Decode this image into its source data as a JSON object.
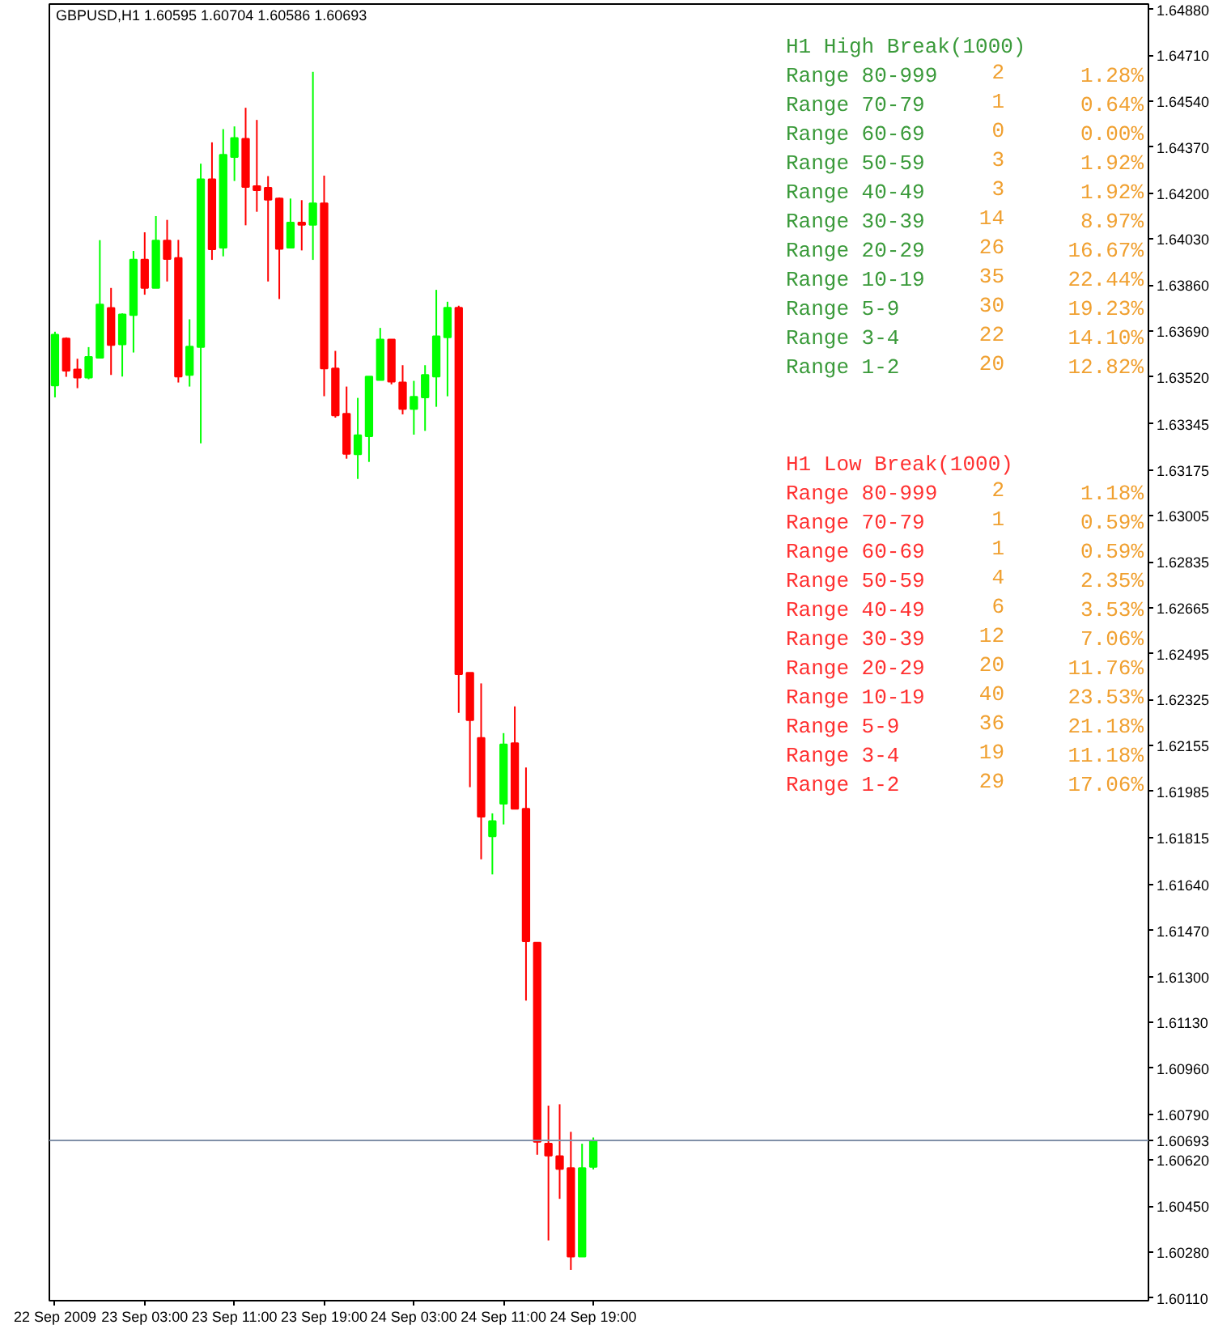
{
  "chart_data": {
    "type": "candlestick",
    "title": "GBPUSD,H1 1.60595 1.60704 1.60586 1.60693",
    "x": [
      "2009-09-22T19:00",
      "2009-09-22T20:00",
      "2009-09-22T21:00",
      "2009-09-22T22:00",
      "2009-09-22T23:00",
      "2009-09-23T00:00",
      "2009-09-23T01:00",
      "2009-09-23T02:00",
      "2009-09-23T03:00",
      "2009-09-23T04:00",
      "2009-09-23T05:00",
      "2009-09-23T06:00",
      "2009-09-23T07:00",
      "2009-09-23T08:00",
      "2009-09-23T09:00",
      "2009-09-23T10:00",
      "2009-09-23T11:00",
      "2009-09-23T12:00",
      "2009-09-23T13:00",
      "2009-09-23T14:00",
      "2009-09-23T15:00",
      "2009-09-23T16:00",
      "2009-09-23T17:00",
      "2009-09-23T18:00",
      "2009-09-23T19:00",
      "2009-09-23T20:00",
      "2009-09-23T21:00",
      "2009-09-23T22:00",
      "2009-09-23T23:00",
      "2009-09-24T00:00",
      "2009-09-24T01:00",
      "2009-09-24T02:00",
      "2009-09-24T03:00",
      "2009-09-24T04:00",
      "2009-09-24T05:00",
      "2009-09-24T06:00",
      "2009-09-24T07:00",
      "2009-09-24T08:00",
      "2009-09-24T09:00",
      "2009-09-24T10:00",
      "2009-09-24T11:00",
      "2009-09-24T12:00",
      "2009-09-24T13:00",
      "2009-09-24T14:00",
      "2009-09-24T15:00",
      "2009-09-24T16:00",
      "2009-09-24T17:00",
      "2009-09-24T18:00",
      "2009-09-24T19:00"
    ],
    "ohlc": [
      [
        1.63488,
        1.63687,
        1.63444,
        1.63676
      ],
      [
        1.63662,
        1.63666,
        1.6352,
        1.63543
      ],
      [
        1.63547,
        1.63587,
        1.63478,
        1.63517
      ],
      [
        1.63517,
        1.6363,
        1.63511,
        1.63594
      ],
      [
        1.63591,
        1.64026,
        1.63591,
        1.63788
      ],
      [
        1.63775,
        1.63849,
        1.63527,
        1.63638
      ],
      [
        1.6364,
        1.63755,
        1.63521,
        1.63751
      ],
      [
        1.63749,
        1.63986,
        1.6361,
        1.63954
      ],
      [
        1.63954,
        1.64055,
        1.63824,
        1.63849
      ],
      [
        1.63849,
        1.64115,
        1.63849,
        1.64024
      ],
      [
        1.64024,
        1.64101,
        1.63873,
        1.63956
      ],
      [
        1.6396,
        1.64027,
        1.63499,
        1.63521
      ],
      [
        1.63527,
        1.63733,
        1.63484,
        1.63632
      ],
      [
        1.6363,
        1.64309,
        1.63274,
        1.64251
      ],
      [
        1.64251,
        1.64388,
        1.63953,
        1.63992
      ],
      [
        1.63998,
        1.64437,
        1.63966,
        1.64342
      ],
      [
        1.64334,
        1.64447,
        1.64245,
        1.64404
      ],
      [
        1.64401,
        1.64516,
        1.64081,
        1.64223
      ],
      [
        1.64226,
        1.64471,
        1.64131,
        1.64211
      ],
      [
        1.6422,
        1.64263,
        1.63873,
        1.64176
      ],
      [
        1.6418,
        1.64184,
        1.63808,
        1.63994
      ],
      [
        1.63998,
        1.6418,
        1.63998,
        1.64091
      ],
      [
        1.64091,
        1.64174,
        1.63988,
        1.64083
      ],
      [
        1.64083,
        1.64649,
        1.63953,
        1.64162
      ],
      [
        1.64162,
        1.64265,
        1.63448,
        1.63551
      ],
      [
        1.63551,
        1.63616,
        1.63369,
        1.63377
      ],
      [
        1.63383,
        1.63484,
        1.63217,
        1.63235
      ],
      [
        1.63233,
        1.63442,
        1.63142,
        1.63304
      ],
      [
        1.633,
        1.63521,
        1.63205,
        1.63521
      ],
      [
        1.63508,
        1.63701,
        1.63508,
        1.63658
      ],
      [
        1.63658,
        1.63658,
        1.63492,
        1.63502
      ],
      [
        1.63499,
        1.63563,
        1.63381,
        1.63401
      ],
      [
        1.63401,
        1.63505,
        1.63306,
        1.63446
      ],
      [
        1.63444,
        1.63563,
        1.6332,
        1.63527
      ],
      [
        1.63521,
        1.63842,
        1.63409,
        1.6367
      ],
      [
        1.63666,
        1.63798,
        1.63448,
        1.63776
      ],
      [
        1.63776,
        1.63783,
        1.62276,
        1.62419
      ],
      [
        1.62424,
        1.62424,
        1.62001,
        1.62249
      ],
      [
        1.62183,
        1.62385,
        1.61734,
        1.61892
      ],
      [
        1.61819,
        1.61904,
        1.61678,
        1.61875
      ],
      [
        1.6194,
        1.62201,
        1.61863,
        1.62159
      ],
      [
        1.62164,
        1.623,
        1.61921,
        1.61921
      ],
      [
        1.61921,
        1.62074,
        1.61211,
        1.6143
      ],
      [
        1.61425,
        1.61425,
        1.6064,
        1.60688
      ],
      [
        1.60681,
        1.60822,
        1.60323,
        1.60637
      ],
      [
        1.60635,
        1.60827,
        1.60477,
        1.60588
      ],
      [
        1.60591,
        1.60725,
        1.60214,
        1.60263
      ],
      [
        1.60263,
        1.60681,
        1.60263,
        1.60591
      ],
      [
        1.60595,
        1.60704,
        1.60586,
        1.60693
      ]
    ],
    "colors": [
      "#00ff00",
      "#ff0000",
      "#ff0000",
      "#00ff00",
      "#00ff00",
      "#ff0000",
      "#00ff00",
      "#00ff00",
      "#ff0000",
      "#00ff00",
      "#ff0000",
      "#ff0000",
      "#00ff00",
      "#00ff00",
      "#ff0000",
      "#00ff00",
      "#00ff00",
      "#ff0000",
      "#ff0000",
      "#ff0000",
      "#ff0000",
      "#00ff00",
      "#ff0000",
      "#00ff00",
      "#ff0000",
      "#ff0000",
      "#ff0000",
      "#00ff00",
      "#00ff00",
      "#00ff00",
      "#ff0000",
      "#ff0000",
      "#00ff00",
      "#00ff00",
      "#00ff00",
      "#00ff00",
      "#ff0000",
      "#ff0000",
      "#ff0000",
      "#00ff00",
      "#00ff00",
      "#ff0000",
      "#ff0000",
      "#ff0000",
      "#ff0000",
      "#ff0000",
      "#ff0000",
      "#00ff00",
      "#00ff00"
    ],
    "xlim": [
      "2009-09-22T18:30",
      "2009-09-26T20:30"
    ],
    "xticks": [
      {
        "value": "2009-09-22T19:00",
        "label": "22 Sep 2009"
      },
      {
        "value": "2009-09-23T03:00",
        "label": "23 Sep 03:00"
      },
      {
        "value": "2009-09-23T11:00",
        "label": "23 Sep 11:00"
      },
      {
        "value": "2009-09-23T19:00",
        "label": "23 Sep 19:00"
      },
      {
        "value": "2009-09-24T03:00",
        "label": "24 Sep 03:00"
      },
      {
        "value": "2009-09-24T11:00",
        "label": "24 Sep 11:00"
      },
      {
        "value": "2009-09-24T19:00",
        "label": "24 Sep 19:00"
      }
    ],
    "ylim": [
      1.601,
      1.649
    ],
    "yticks": [
      {
        "value": 1.6488,
        "label": "1.64880"
      },
      {
        "value": 1.6471,
        "label": "1.64710"
      },
      {
        "value": 1.6454,
        "label": "1.64540"
      },
      {
        "value": 1.6437,
        "label": "1.64370"
      },
      {
        "value": 1.642,
        "label": "1.64200"
      },
      {
        "value": 1.6403,
        "label": "1.64030"
      },
      {
        "value": 1.6386,
        "label": "1.63860"
      },
      {
        "value": 1.6369,
        "label": "1.63690"
      },
      {
        "value": 1.6352,
        "label": "1.63520"
      },
      {
        "value": 1.63345,
        "label": "1.63345"
      },
      {
        "value": 1.63175,
        "label": "1.63175"
      },
      {
        "value": 1.63005,
        "label": "1.63005"
      },
      {
        "value": 1.62835,
        "label": "1.62835"
      },
      {
        "value": 1.62665,
        "label": "1.62665"
      },
      {
        "value": 1.62495,
        "label": "1.62495"
      },
      {
        "value": 1.62325,
        "label": "1.62325"
      },
      {
        "value": 1.62155,
        "label": "1.62155"
      },
      {
        "value": 1.61985,
        "label": "1.61985"
      },
      {
        "value": 1.61815,
        "label": "1.61815"
      },
      {
        "value": 1.6164,
        "label": "1.61640"
      },
      {
        "value": 1.6147,
        "label": "1.61470"
      },
      {
        "value": 1.613,
        "label": "1.61300"
      },
      {
        "value": 1.6113,
        "label": "1.61130"
      },
      {
        "value": 1.6096,
        "label": "1.60960"
      },
      {
        "value": 1.6079,
        "label": "1.60790"
      },
      {
        "value": 1.6062,
        "label": "1.60620"
      },
      {
        "value": 1.6045,
        "label": "1.60450"
      },
      {
        "value": 1.6028,
        "label": "1.60280"
      },
      {
        "value": 1.6011,
        "label": "1.60110"
      }
    ],
    "ref_lines": [
      {
        "axis": "y",
        "value": 1.60693,
        "label": "1.60693",
        "color": "#8090a8"
      }
    ],
    "annotations": [
      "H1 High Break(1000)",
      "Range 80-999",
      "2",
      "1.28%",
      "Range 70-79",
      "1",
      "0.64%",
      "Range 60-69",
      "0",
      "0.00%",
      "Range 50-59",
      "3",
      "1.92%",
      "Range 40-49",
      "3",
      "1.92%",
      "Range 30-39",
      "14",
      "8.97%",
      "Range 20-29",
      "26",
      "16.67%",
      "Range 10-19",
      "35",
      "22.44%",
      "Range 5-9",
      "30",
      "19.23%",
      "Range 3-4",
      "22",
      "14.10%",
      "Range 1-2",
      "20",
      "12.82%",
      "H1 Low Break(1000)",
      "Range 80-999",
      "2",
      "1.18%",
      "Range 70-79",
      "1",
      "0.59%",
      "Range 60-69",
      "1",
      "0.59%",
      "Range 50-59",
      "4",
      "2.35%",
      "Range 40-49",
      "6",
      "3.53%",
      "Range 30-39",
      "12",
      "7.06%",
      "Range 20-29",
      "20",
      "11.76%",
      "Range 10-19",
      "40",
      "23.53%",
      "Range 5-9",
      "36",
      "21.18%",
      "Range 3-4",
      "19",
      "11.18%",
      "Range 1-2",
      "29",
      "17.06%"
    ]
  }
}
